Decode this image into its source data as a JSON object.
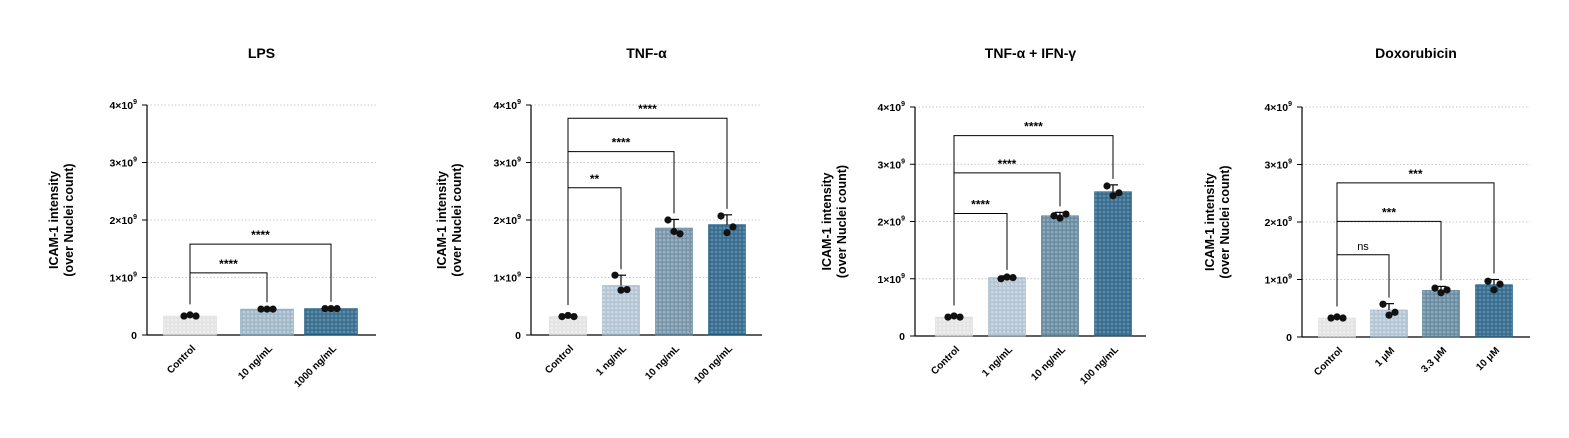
{
  "chart_data": [
    {
      "type": "bar",
      "title": "LPS",
      "ylabel": [
        "ICAM-1 intensity",
        "(over Nuclei count)"
      ],
      "ylim": [
        0,
        4000000000
      ],
      "yticks": [
        {
          "value": 0,
          "base": "0",
          "exp": ""
        },
        {
          "value": 1000000000,
          "base": "1×10",
          "exp": "9"
        },
        {
          "value": 2000000000,
          "base": "2×10",
          "exp": "9"
        },
        {
          "value": 3000000000,
          "base": "3×10",
          "exp": "9"
        },
        {
          "value": 4000000000,
          "base": "4×10",
          "exp": "9"
        }
      ],
      "grid": true,
      "categories": [
        "Control",
        "10 ng/mL",
        "1000 ng/mL"
      ],
      "values": [
        330000000,
        450000000,
        460000000
      ],
      "errors": [
        30000000,
        15000000,
        15000000
      ],
      "points": [
        [
          330000000,
          350000000,
          330000000
        ],
        [
          450000000,
          450000000,
          450000000
        ],
        [
          460000000,
          460000000,
          460000000
        ]
      ],
      "colors": [
        "#dcdcdc",
        "#8aa8bc",
        "#1d5a80"
      ],
      "comparisons": [
        {
          "from": 0,
          "to": 1,
          "label": "****",
          "y": 1080000000
        },
        {
          "from": 0,
          "to": 2,
          "label": "****",
          "y": 1580000000
        }
      ]
    },
    {
      "type": "bar",
      "title": "TNF-α",
      "ylabel": [
        "ICAM-1 intensity",
        "(over Nuclei count)"
      ],
      "ylim": [
        0,
        4000000000
      ],
      "yticks": [
        {
          "value": 0,
          "base": "0",
          "exp": ""
        },
        {
          "value": 1000000000,
          "base": "1×10",
          "exp": "9"
        },
        {
          "value": 2000000000,
          "base": "2×10",
          "exp": "9"
        },
        {
          "value": 3000000000,
          "base": "3×10",
          "exp": "9"
        },
        {
          "value": 4000000000,
          "base": "4×10",
          "exp": "9"
        }
      ],
      "grid": true,
      "categories": [
        "Control",
        "1 ng/mL",
        "10 ng/mL",
        "100 ng/mL"
      ],
      "values": [
        320000000,
        860000000,
        1860000000,
        1920000000
      ],
      "errors": [
        30000000,
        180000000,
        150000000,
        170000000
      ],
      "points": [
        [
          320000000,
          340000000,
          320000000
        ],
        [
          1040000000,
          780000000,
          790000000
        ],
        [
          2000000000,
          1800000000,
          1760000000
        ],
        [
          2070000000,
          1780000000,
          1880000000
        ]
      ],
      "colors": [
        "#dcdcdc",
        "#9fb6c8",
        "#5d8099",
        "#1d5a80"
      ],
      "comparisons": [
        {
          "from": 0,
          "to": 1,
          "label": "**",
          "y": 2560000000
        },
        {
          "from": 0,
          "to": 2,
          "label": "****",
          "y": 3190000000
        },
        {
          "from": 0,
          "to": 3,
          "label": "****",
          "y": 3770000000
        }
      ]
    },
    {
      "type": "bar",
      "title": "TNF-α + IFN-γ",
      "ylabel": [
        "ICAM-1 intensity",
        "(over Nuclei count)"
      ],
      "ylim": [
        0,
        4000000000
      ],
      "yticks": [
        {
          "value": 0,
          "base": "0",
          "exp": ""
        },
        {
          "value": 1000000000,
          "base": "1×10",
          "exp": "9"
        },
        {
          "value": 2000000000,
          "base": "2×10",
          "exp": "9"
        },
        {
          "value": 3000000000,
          "base": "3×10",
          "exp": "9"
        },
        {
          "value": 4000000000,
          "base": "4×10",
          "exp": "9"
        }
      ],
      "grid": true,
      "categories": [
        "Control",
        "1 ng/mL",
        "10 ng/mL",
        "100 ng/mL"
      ],
      "values": [
        330000000,
        1020000000,
        2100000000,
        2520000000
      ],
      "errors": [
        30000000,
        30000000,
        60000000,
        120000000
      ],
      "points": [
        [
          330000000,
          350000000,
          330000000
        ],
        [
          1000000000,
          1030000000,
          1020000000
        ],
        [
          2100000000,
          2060000000,
          2130000000
        ],
        [
          2620000000,
          2450000000,
          2500000000
        ]
      ],
      "colors": [
        "#dcdcdc",
        "#9fb6c8",
        "#4e7891",
        "#1d5a80"
      ],
      "comparisons": [
        {
          "from": 0,
          "to": 1,
          "label": "****",
          "y": 2140000000
        },
        {
          "from": 0,
          "to": 2,
          "label": "****",
          "y": 2850000000
        },
        {
          "from": 0,
          "to": 3,
          "label": "****",
          "y": 3500000000
        }
      ]
    },
    {
      "type": "bar",
      "title": "Doxorubicin",
      "ylabel": [
        "ICAM-1 intensity",
        "(over Nuclei count)"
      ],
      "ylim": [
        0,
        4000000000
      ],
      "yticks": [
        {
          "value": 0,
          "base": "0",
          "exp": ""
        },
        {
          "value": 1000000000,
          "base": "1×10",
          "exp": "9"
        },
        {
          "value": 2000000000,
          "base": "2×10",
          "exp": "9"
        },
        {
          "value": 3000000000,
          "base": "3×10",
          "exp": "9"
        },
        {
          "value": 4000000000,
          "base": "4×10",
          "exp": "9"
        }
      ],
      "grid": true,
      "categories": [
        "Control",
        "1 μM",
        "3.3 μM",
        "10 μM"
      ],
      "values": [
        330000000,
        470000000,
        810000000,
        910000000
      ],
      "errors": [
        30000000,
        110000000,
        70000000,
        90000000
      ],
      "points": [
        [
          330000000,
          350000000,
          330000000
        ],
        [
          570000000,
          380000000,
          430000000
        ],
        [
          850000000,
          770000000,
          820000000
        ],
        [
          970000000,
          820000000,
          920000000
        ]
      ],
      "colors": [
        "#dcdcdc",
        "#9fb6c8",
        "#4e7891",
        "#1d5a80"
      ],
      "comparisons": [
        {
          "from": 0,
          "to": 1,
          "label": "ns",
          "y": 1430000000
        },
        {
          "from": 0,
          "to": 2,
          "label": "***",
          "y": 2010000000
        },
        {
          "from": 0,
          "to": 3,
          "label": "***",
          "y": 2680000000
        }
      ]
    }
  ]
}
